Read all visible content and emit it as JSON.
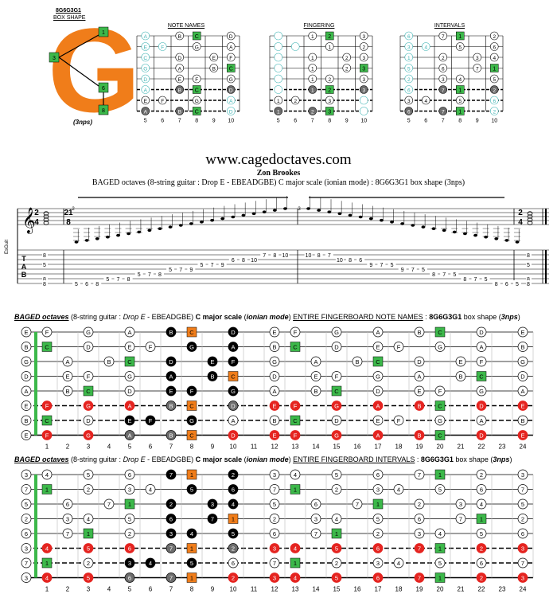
{
  "shape": {
    "title": "8G6G3G1",
    "subtitle": "BOX SHAPE",
    "nps": "(3nps)",
    "letter": "G",
    "markers": [
      "1",
      "3",
      "6",
      "8"
    ]
  },
  "mini_titles": [
    "NOTE NAMES",
    "FINGERING",
    "INTERVALS"
  ],
  "mini_fret_numbers": [
    "5",
    "6",
    "7",
    "8",
    "9",
    "10"
  ],
  "site": "www.cagedoctaves.com",
  "author": "Zon Brookes",
  "subtitle": "BAGED octaves (8-string guitar : Drop E - EBEADGBE) C major scale (ionian mode) : 8G6G3G1 box shape (3nps)",
  "staff": {
    "clef_label": "EsGuit",
    "time_sig_start": [
      "2",
      "4"
    ],
    "time_sig_mid": [
      "21",
      "8"
    ],
    "time_sig_end": [
      "2",
      "4"
    ],
    "measure_numbers": [
      "2",
      "3"
    ],
    "tab_letters": [
      "T",
      "A",
      "B"
    ],
    "chord_start": [
      "8",
      "5",
      "8",
      "8"
    ],
    "chord_end": [
      "8",
      "5",
      "8",
      "8"
    ],
    "tab_numbers": [
      {
        "s": 6,
        "n": "5"
      },
      {
        "s": 6,
        "n": "6"
      },
      {
        "s": 6,
        "n": "8"
      },
      {
        "s": 5,
        "n": "5"
      },
      {
        "s": 5,
        "n": "7"
      },
      {
        "s": 5,
        "n": "8"
      },
      {
        "s": 4,
        "n": "5"
      },
      {
        "s": 4,
        "n": "7"
      },
      {
        "s": 4,
        "n": "8"
      },
      {
        "s": 3,
        "n": "5"
      },
      {
        "s": 3,
        "n": "7"
      },
      {
        "s": 3,
        "n": "9"
      },
      {
        "s": 2,
        "n": "5"
      },
      {
        "s": 2,
        "n": "7"
      },
      {
        "s": 2,
        "n": "9"
      },
      {
        "s": 1,
        "n": "6"
      },
      {
        "s": 1,
        "n": "8"
      },
      {
        "s": 1,
        "n": "10"
      },
      {
        "s": 0,
        "n": "7"
      },
      {
        "s": 0,
        "n": "8"
      },
      {
        "s": 0,
        "n": "10"
      },
      {
        "s": 0,
        "n": "10"
      },
      {
        "s": 0,
        "n": "8"
      },
      {
        "s": 0,
        "n": "7"
      },
      {
        "s": 1,
        "n": "10"
      },
      {
        "s": 1,
        "n": "8"
      },
      {
        "s": 1,
        "n": "6"
      },
      {
        "s": 2,
        "n": "9"
      },
      {
        "s": 2,
        "n": "7"
      },
      {
        "s": 2,
        "n": "5"
      },
      {
        "s": 3,
        "n": "9"
      },
      {
        "s": 3,
        "n": "7"
      },
      {
        "s": 3,
        "n": "5"
      },
      {
        "s": 4,
        "n": "8"
      },
      {
        "s": 4,
        "n": "7"
      },
      {
        "s": 4,
        "n": "5"
      },
      {
        "s": 5,
        "n": "8"
      },
      {
        "s": 5,
        "n": "7"
      },
      {
        "s": 5,
        "n": "5"
      },
      {
        "s": 6,
        "n": "8"
      },
      {
        "s": 6,
        "n": "6"
      },
      {
        "s": 6,
        "n": "5"
      }
    ]
  },
  "caption1": {
    "a": "BAGED octaves",
    "b": " (8-string guitar : ",
    "c": "Drop E",
    "d": " - EBEADGBE) ",
    "e": "C major scale",
    "f": " (",
    "g": "ionian mode",
    "h": ") ",
    "i": "ENTIRE FINGERBOARD NOTE NAMES",
    "j": " : ",
    "k": "8G6G3G1",
    "l": " box shape (",
    "m": "3nps",
    "n": ")"
  },
  "caption2": {
    "a": "BAGED octaves",
    "b": " (8-string guitar : ",
    "c": "Drop E",
    "d": " - EBEADGBE) ",
    "e": "C major scale",
    "f": " (",
    "g": "ionian mode",
    "h": ") ",
    "i": "ENTIRE FINGERBOARD INTERVALS",
    "j": " : ",
    "k": "8G6G3G1",
    "l": " box shape (",
    "m": "3nps",
    "n": ")"
  },
  "open_strings": [
    "E",
    "B",
    "G",
    "D",
    "A",
    "E",
    "B",
    "E"
  ],
  "scale_notes": [
    "C",
    "D",
    "E",
    "F",
    "G",
    "A",
    "B"
  ],
  "scale_intervals": [
    "1",
    "2",
    "3",
    "4",
    "5",
    "6",
    "7"
  ],
  "fret_numbers": [
    "1",
    "2",
    "3",
    "4",
    "5",
    "6",
    "7",
    "8",
    "9",
    "10",
    "11",
    "12",
    "13",
    "14",
    "15",
    "16",
    "17",
    "18",
    "19",
    "20",
    "21",
    "22",
    "23",
    "24"
  ],
  "colors": {
    "root": "#3cb84a",
    "root_shape": "#f07d1a",
    "box": "#000000",
    "box_root": "#f07d1a",
    "octave_red": "#e52420",
    "grey": "#6d6d6d",
    "teal_outline": "#3fb4b4",
    "letter_orange": "#f07d1a"
  }
}
